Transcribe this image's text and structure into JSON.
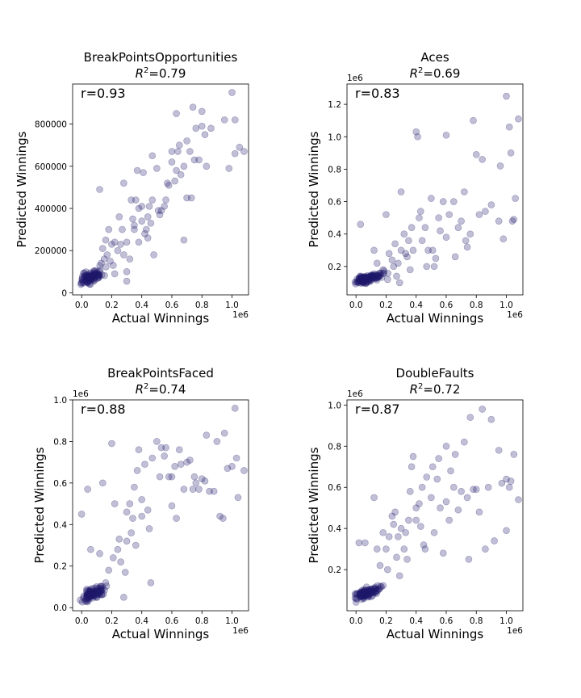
{
  "figure": {
    "xlabel": "Actual Winnings",
    "ylabel": "Predicted Winnings",
    "marker_color": "#1f1a6b",
    "marker_opacity": 0.28
  },
  "chart_data": [
    {
      "type": "scatter",
      "title": "BreakPointsOpportunities",
      "r2_prefix": "R",
      "r2_exp": "2",
      "r2_value": "=0.79",
      "corr_label": "r=0.93",
      "xlabel": "Actual Winnings",
      "ylabel": "Predicted Winnings",
      "x_offset_label": "1e6",
      "y_offset_label": "",
      "xlim": [
        -0.06,
        1.11
      ],
      "ylim": [
        -10000,
        990000
      ],
      "xticks": [
        0,
        0.2,
        0.4,
        0.6,
        0.8,
        1.0
      ],
      "xtick_labels": [
        "0.0",
        "0.2",
        "0.4",
        "0.6",
        "0.8",
        "1.0"
      ],
      "yticks": [
        0,
        200000,
        400000,
        600000,
        800000
      ],
      "ytick_labels": [
        "0",
        "200000",
        "400000",
        "600000",
        "800000"
      ],
      "cluster": {
        "cx": 0.06,
        "cy": 60000,
        "sx": 0.045,
        "sy": 22000,
        "n": 110
      },
      "points": [
        [
          0.12,
          490000
        ],
        [
          0.18,
          300000
        ],
        [
          0.2,
          230000
        ],
        [
          0.22,
          240000
        ],
        [
          0.25,
          360000
        ],
        [
          0.27,
          300000
        ],
        [
          0.28,
          180000
        ],
        [
          0.3,
          100000
        ],
        [
          0.3,
          240000
        ],
        [
          0.32,
          160000
        ],
        [
          0.33,
          440000
        ],
        [
          0.35,
          300000
        ],
        [
          0.35,
          320000
        ],
        [
          0.37,
          580000
        ],
        [
          0.38,
          240000
        ],
        [
          0.38,
          400000
        ],
        [
          0.4,
          340000
        ],
        [
          0.4,
          410000
        ],
        [
          0.41,
          570000
        ],
        [
          0.42,
          280000
        ],
        [
          0.43,
          300000
        ],
        [
          0.44,
          360000
        ],
        [
          0.45,
          410000
        ],
        [
          0.46,
          330000
        ],
        [
          0.47,
          440000
        ],
        [
          0.47,
          650000
        ],
        [
          0.48,
          180000
        ],
        [
          0.5,
          590000
        ],
        [
          0.51,
          390000
        ],
        [
          0.52,
          370000
        ],
        [
          0.55,
          410000
        ],
        [
          0.56,
          440000
        ],
        [
          0.58,
          510000
        ],
        [
          0.6,
          670000
        ],
        [
          0.6,
          620000
        ],
        [
          0.62,
          530000
        ],
        [
          0.63,
          850000
        ],
        [
          0.63,
          580000
        ],
        [
          0.65,
          700000
        ],
        [
          0.66,
          560000
        ],
        [
          0.68,
          250000
        ],
        [
          0.68,
          600000
        ],
        [
          0.7,
          450000
        ],
        [
          0.7,
          720000
        ],
        [
          0.72,
          670000
        ],
        [
          0.73,
          450000
        ],
        [
          0.74,
          880000
        ],
        [
          0.75,
          630000
        ],
        [
          0.76,
          780000
        ],
        [
          0.78,
          630000
        ],
        [
          0.8,
          790000
        ],
        [
          0.8,
          860000
        ],
        [
          0.82,
          750000
        ],
        [
          0.83,
          600000
        ],
        [
          0.86,
          780000
        ],
        [
          0.95,
          820000
        ],
        [
          0.98,
          590000
        ],
        [
          1.0,
          950000
        ],
        [
          1.02,
          820000
        ],
        [
          1.02,
          660000
        ],
        [
          1.05,
          690000
        ],
        [
          1.08,
          670000
        ],
        [
          0.14,
          210000
        ],
        [
          0.16,
          250000
        ],
        [
          0.24,
          200000
        ],
        [
          0.26,
          230000
        ],
        [
          0.34,
          350000
        ],
        [
          0.36,
          440000
        ],
        [
          0.44,
          260000
        ],
        [
          0.53,
          390000
        ],
        [
          0.57,
          520000
        ],
        [
          0.64,
          670000
        ],
        [
          0.28,
          520000
        ],
        [
          0.22,
          90000
        ],
        [
          0.3,
          55000
        ],
        [
          0.19,
          150000
        ],
        [
          0.21,
          130000
        ],
        [
          0.17,
          180000
        ],
        [
          0.15,
          160000
        ],
        [
          0.13,
          140000
        ]
      ]
    },
    {
      "type": "scatter",
      "title": "Aces",
      "r2_prefix": "R",
      "r2_exp": "2",
      "r2_value": "=0.69",
      "corr_label": "r=0.83",
      "xlabel": "Actual Winnings",
      "ylabel": "Predicted Winnings",
      "x_offset_label": "1e6",
      "y_offset_label": "1e6",
      "xlim": [
        -0.06,
        1.11
      ],
      "ylim": [
        0.025,
        1.325
      ],
      "xticks": [
        0,
        0.2,
        0.4,
        0.6,
        0.8,
        1.0
      ],
      "xtick_labels": [
        "0.0",
        "0.2",
        "0.4",
        "0.6",
        "0.8",
        "1.0"
      ],
      "yticks": [
        0.2,
        0.4,
        0.6,
        0.8,
        1.0,
        1.2
      ],
      "ytick_labels": [
        "0.2",
        "0.4",
        "0.6",
        "0.8",
        "1.0",
        "1.2"
      ],
      "cluster": {
        "cx": 0.06,
        "cy": 0.11,
        "sx": 0.045,
        "sy": 0.02,
        "n": 110
      },
      "points": [
        [
          0.03,
          0.46
        ],
        [
          0.12,
          0.3
        ],
        [
          0.2,
          0.52
        ],
        [
          0.22,
          0.28
        ],
        [
          0.25,
          0.2
        ],
        [
          0.28,
          0.22
        ],
        [
          0.3,
          0.66
        ],
        [
          0.3,
          0.3
        ],
        [
          0.32,
          0.4
        ],
        [
          0.34,
          0.26
        ],
        [
          0.35,
          0.36
        ],
        [
          0.36,
          0.18
        ],
        [
          0.38,
          0.3
        ],
        [
          0.4,
          1.03
        ],
        [
          0.41,
          1.0
        ],
        [
          0.42,
          0.5
        ],
        [
          0.43,
          0.54
        ],
        [
          0.44,
          0.36
        ],
        [
          0.46,
          0.44
        ],
        [
          0.48,
          0.3
        ],
        [
          0.5,
          0.62
        ],
        [
          0.51,
          0.3
        ],
        [
          0.52,
          0.2
        ],
        [
          0.53,
          0.25
        ],
        [
          0.55,
          0.5
        ],
        [
          0.56,
          0.42
        ],
        [
          0.58,
          0.6
        ],
        [
          0.6,
          0.38
        ],
        [
          0.6,
          1.01
        ],
        [
          0.62,
          0.52
        ],
        [
          0.65,
          0.6
        ],
        [
          0.66,
          0.26
        ],
        [
          0.68,
          0.44
        ],
        [
          0.7,
          0.48
        ],
        [
          0.72,
          0.66
        ],
        [
          0.73,
          0.36
        ],
        [
          0.74,
          0.32
        ],
        [
          0.76,
          0.4
        ],
        [
          0.78,
          1.1
        ],
        [
          0.8,
          0.89
        ],
        [
          0.82,
          0.52
        ],
        [
          0.84,
          0.86
        ],
        [
          0.86,
          0.54
        ],
        [
          0.9,
          0.58
        ],
        [
          0.95,
          0.48
        ],
        [
          0.96,
          0.82
        ],
        [
          0.98,
          0.37
        ],
        [
          1.0,
          1.25
        ],
        [
          1.02,
          1.06
        ],
        [
          1.03,
          0.9
        ],
        [
          1.05,
          0.49
        ],
        [
          1.06,
          0.62
        ],
        [
          1.08,
          1.11
        ],
        [
          1.04,
          0.48
        ],
        [
          0.18,
          0.18
        ],
        [
          0.24,
          0.24
        ],
        [
          0.26,
          0.34
        ],
        [
          0.14,
          0.22
        ],
        [
          0.16,
          0.16
        ],
        [
          0.47,
          0.2
        ],
        [
          0.37,
          0.44
        ],
        [
          0.33,
          0.28
        ],
        [
          0.29,
          0.1
        ],
        [
          0.21,
          0.12
        ],
        [
          0.27,
          0.14
        ]
      ]
    },
    {
      "type": "scatter",
      "title": "BreakPointsFaced",
      "r2_prefix": "R",
      "r2_exp": "2",
      "r2_value": "=0.74",
      "corr_label": "r=0.88",
      "xlabel": "Actual Winnings",
      "ylabel": "Predicted Winnings",
      "x_offset_label": "1e6",
      "y_offset_label": "1e6",
      "xlim": [
        -0.06,
        1.11
      ],
      "ylim": [
        -0.015,
        1.0
      ],
      "xticks": [
        0,
        0.2,
        0.4,
        0.6,
        0.8,
        1.0
      ],
      "xtick_labels": [
        "0.0",
        "0.2",
        "0.4",
        "0.6",
        "0.8",
        "1.0"
      ],
      "yticks": [
        0,
        0.2,
        0.4,
        0.6,
        0.8,
        1.0
      ],
      "ytick_labels": [
        "0.0",
        "0.2",
        "0.4",
        "0.6",
        "0.8",
        "1.0"
      ],
      "cluster": {
        "cx": 0.06,
        "cy": 0.05,
        "sx": 0.045,
        "sy": 0.022,
        "n": 110
      },
      "points": [
        [
          0.0,
          0.45
        ],
        [
          0.04,
          0.57
        ],
        [
          0.14,
          0.6
        ],
        [
          0.2,
          0.79
        ],
        [
          0.22,
          0.5
        ],
        [
          0.25,
          0.33
        ],
        [
          0.28,
          0.05
        ],
        [
          0.3,
          0.46
        ],
        [
          0.32,
          0.5
        ],
        [
          0.34,
          0.43
        ],
        [
          0.35,
          0.58
        ],
        [
          0.37,
          0.66
        ],
        [
          0.38,
          0.76
        ],
        [
          0.4,
          0.44
        ],
        [
          0.4,
          0.52
        ],
        [
          0.42,
          0.69
        ],
        [
          0.44,
          0.47
        ],
        [
          0.45,
          0.38
        ],
        [
          0.46,
          0.12
        ],
        [
          0.47,
          0.72
        ],
        [
          0.5,
          0.8
        ],
        [
          0.52,
          0.63
        ],
        [
          0.53,
          0.77
        ],
        [
          0.55,
          0.73
        ],
        [
          0.56,
          0.77
        ],
        [
          0.58,
          0.63
        ],
        [
          0.6,
          0.63
        ],
        [
          0.6,
          0.49
        ],
        [
          0.62,
          0.68
        ],
        [
          0.63,
          0.43
        ],
        [
          0.65,
          0.76
        ],
        [
          0.66,
          0.69
        ],
        [
          0.68,
          0.57
        ],
        [
          0.7,
          0.7
        ],
        [
          0.72,
          0.71
        ],
        [
          0.74,
          0.57
        ],
        [
          0.75,
          0.63
        ],
        [
          0.76,
          0.6
        ],
        [
          0.78,
          0.57
        ],
        [
          0.8,
          0.62
        ],
        [
          0.82,
          0.61
        ],
        [
          0.83,
          0.83
        ],
        [
          0.85,
          0.56
        ],
        [
          0.88,
          0.56
        ],
        [
          0.9,
          0.8
        ],
        [
          0.92,
          0.44
        ],
        [
          0.94,
          0.43
        ],
        [
          0.95,
          0.84
        ],
        [
          0.97,
          0.67
        ],
        [
          1.0,
          0.68
        ],
        [
          1.02,
          0.96
        ],
        [
          1.03,
          0.72
        ],
        [
          1.04,
          0.53
        ],
        [
          1.08,
          0.66
        ],
        [
          0.24,
          0.28
        ],
        [
          0.26,
          0.22
        ],
        [
          0.3,
          0.32
        ],
        [
          0.18,
          0.18
        ],
        [
          0.16,
          0.12
        ],
        [
          0.36,
          0.3
        ],
        [
          0.33,
          0.36
        ],
        [
          0.29,
          0.17
        ],
        [
          0.21,
          0.24
        ],
        [
          0.12,
          0.26
        ],
        [
          0.06,
          0.28
        ]
      ]
    },
    {
      "type": "scatter",
      "title": "DoubleFaults",
      "r2_prefix": "R",
      "r2_exp": "2",
      "r2_value": "=0.72",
      "corr_label": "r=0.87",
      "xlabel": "Actual Winnings",
      "ylabel": "Predicted Winnings",
      "x_offset_label": "1e6",
      "y_offset_label": "1e6",
      "xlim": [
        -0.06,
        1.11
      ],
      "ylim": [
        0.0,
        1.025
      ],
      "xticks": [
        0,
        0.2,
        0.4,
        0.6,
        0.8,
        1.0
      ],
      "xtick_labels": [
        "0.0",
        "0.2",
        "0.4",
        "0.6",
        "0.8",
        "1.0"
      ],
      "yticks": [
        0.2,
        0.4,
        0.6,
        0.8,
        1.0
      ],
      "ytick_labels": [
        "0.2",
        "0.4",
        "0.6",
        "0.8",
        "1.0"
      ],
      "cluster": {
        "cx": 0.06,
        "cy": 0.07,
        "sx": 0.045,
        "sy": 0.02,
        "n": 110
      },
      "points": [
        [
          0.02,
          0.33
        ],
        [
          0.06,
          0.33
        ],
        [
          0.12,
          0.55
        ],
        [
          0.14,
          0.3
        ],
        [
          0.18,
          0.38
        ],
        [
          0.2,
          0.3
        ],
        [
          0.22,
          0.36
        ],
        [
          0.24,
          0.46
        ],
        [
          0.25,
          0.42
        ],
        [
          0.27,
          0.26
        ],
        [
          0.28,
          0.36
        ],
        [
          0.3,
          0.4
        ],
        [
          0.32,
          0.3
        ],
        [
          0.34,
          0.25
        ],
        [
          0.36,
          0.58
        ],
        [
          0.37,
          0.7
        ],
        [
          0.38,
          0.75
        ],
        [
          0.4,
          0.44
        ],
        [
          0.4,
          0.5
        ],
        [
          0.42,
          0.52
        ],
        [
          0.44,
          0.6
        ],
        [
          0.45,
          0.32
        ],
        [
          0.46,
          0.3
        ],
        [
          0.47,
          0.65
        ],
        [
          0.5,
          0.55
        ],
        [
          0.51,
          0.7
        ],
        [
          0.52,
          0.38
        ],
        [
          0.54,
          0.64
        ],
        [
          0.55,
          0.74
        ],
        [
          0.56,
          0.5
        ],
        [
          0.58,
          0.28
        ],
        [
          0.6,
          0.8
        ],
        [
          0.6,
          0.53
        ],
        [
          0.62,
          0.44
        ],
        [
          0.63,
          0.68
        ],
        [
          0.65,
          0.6
        ],
        [
          0.66,
          0.76
        ],
        [
          0.68,
          0.49
        ],
        [
          0.7,
          0.58
        ],
        [
          0.72,
          0.82
        ],
        [
          0.74,
          0.55
        ],
        [
          0.75,
          0.25
        ],
        [
          0.76,
          0.94
        ],
        [
          0.78,
          0.59
        ],
        [
          0.8,
          0.59
        ],
        [
          0.82,
          0.48
        ],
        [
          0.84,
          0.98
        ],
        [
          0.86,
          0.3
        ],
        [
          0.88,
          0.6
        ],
        [
          0.9,
          0.93
        ],
        [
          0.92,
          0.34
        ],
        [
          0.95,
          0.78
        ],
        [
          0.97,
          0.62
        ],
        [
          1.0,
          0.64
        ],
        [
          1.02,
          0.6
        ],
        [
          1.03,
          0.63
        ],
        [
          1.05,
          0.76
        ],
        [
          1.08,
          0.54
        ],
        [
          1.0,
          0.39
        ],
        [
          0.16,
          0.22
        ],
        [
          0.26,
          0.48
        ],
        [
          0.33,
          0.38
        ],
        [
          0.43,
          0.41
        ],
        [
          0.29,
          0.17
        ],
        [
          0.21,
          0.2
        ],
        [
          0.35,
          0.44
        ]
      ]
    }
  ]
}
